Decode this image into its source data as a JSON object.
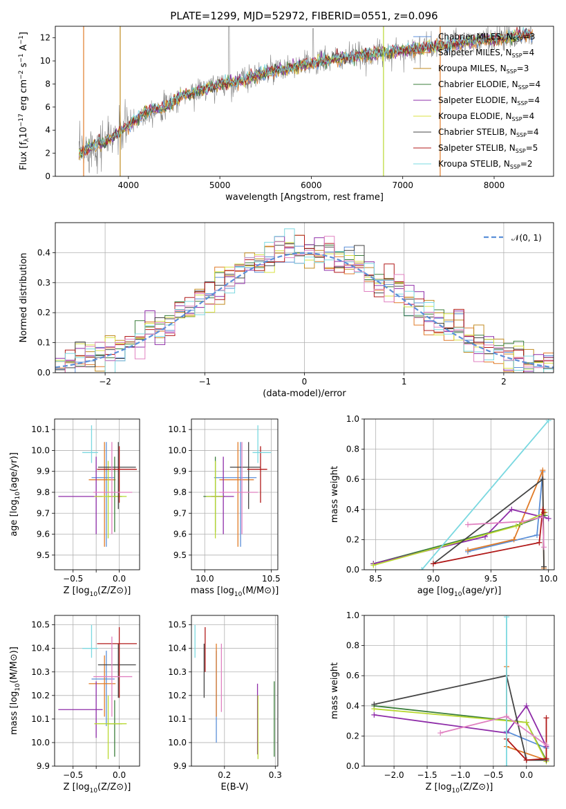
{
  "figure": {
    "title": "PLATE=1299, MJD=52972, FIBERID=0551, z=0.096"
  },
  "colors": {
    "data": "#808080",
    "Chabrier MILES": "#5b8fd8",
    "Salpeter MILES": "#e07b28",
    "Kroupa MILES": "#c08a20",
    "Chabrier ELODIE": "#3a7d3a",
    "Salpeter ELODIE": "#8e2ca8",
    "Kroupa ELODIE": "#d8e040",
    "Chabrier STELIB": "#444444",
    "Salpeter STELIB": "#b01818",
    "Kroupa STELIB": "#7ad8e0",
    "Pink": "#e080c0",
    "Lime": "#b8d830"
  },
  "chart_data": [
    {
      "id": "spectrum",
      "type": "line",
      "title": "PLATE=1299, MJD=52972, FIBERID=0551, z=0.096",
      "xlabel": "wavelength [Angstrom, rest frame]",
      "ylabel_parts": [
        "Flux [f",
        "λ",
        "10",
        "−17",
        " erg cm",
        "−2",
        " s",
        "−1",
        " A",
        "−1",
        "]"
      ],
      "xlim": [
        3200,
        8650
      ],
      "ylim": [
        0,
        13
      ],
      "xticks": [
        4000,
        5000,
        6000,
        7000,
        8000
      ],
      "yticks": [
        0,
        2,
        4,
        6,
        8,
        10,
        12
      ],
      "grid": false,
      "legend_position": "top-right",
      "legend": [
        {
          "label": "Chabrier MILES, N",
          "sub": "SSP",
          "suffix": "=3",
          "color": "#5b8fd8"
        },
        {
          "label": "Salpeter MILES, N",
          "sub": "SSP",
          "suffix": "=4",
          "color": "#e07b28"
        },
        {
          "label": "Kroupa MILES, N",
          "sub": "SSP",
          "suffix": "=3",
          "color": "#c08a20"
        },
        {
          "label": "Chabrier ELODIE, N",
          "sub": "SSP",
          "suffix": "=4",
          "color": "#3a7d3a"
        },
        {
          "label": "Salpeter ELODIE, N",
          "sub": "SSP",
          "suffix": "=4",
          "color": "#8e2ca8"
        },
        {
          "label": "Kroupa ELODIE, N",
          "sub": "SSP",
          "suffix": "=4",
          "color": "#d8e040"
        },
        {
          "label": "Chabrier STELIB, N",
          "sub": "SSP",
          "suffix": "=4",
          "color": "#444444"
        },
        {
          "label": "Salpeter STELIB, N",
          "sub": "SSP",
          "suffix": "=5",
          "color": "#b01818"
        },
        {
          "label": "Kroupa STELIB, N",
          "sub": "SSP",
          "suffix": "=2",
          "color": "#7ad8e0"
        }
      ],
      "model_trend": {
        "x": [
          3450,
          3600,
          3800,
          4000,
          4200,
          4400,
          4600,
          4800,
          5000,
          5200,
          5400,
          5600,
          5800,
          6000,
          6200,
          6400,
          6600,
          6800,
          7000,
          7200,
          7400,
          7600,
          7800,
          8000,
          8200,
          8400
        ],
        "y": [
          1.9,
          2.6,
          3.2,
          4.4,
          5.6,
          6.0,
          7.0,
          7.5,
          8.0,
          8.2,
          8.8,
          9.1,
          9.4,
          9.8,
          10.1,
          10.3,
          10.5,
          10.7,
          10.9,
          11.1,
          11.3,
          11.5,
          11.7,
          11.9,
          12.1,
          12.3
        ]
      },
      "vertical_spikes": [
        {
          "x": 3510,
          "color": "#e07b28"
        },
        {
          "x": 3910,
          "color": "#c08a20"
        },
        {
          "x": 6790,
          "color": "#b8d830"
        },
        {
          "x": 7410,
          "color": "#e07b28"
        }
      ]
    },
    {
      "id": "residuals",
      "type": "histogram",
      "xlabel": "(data-model)/error",
      "ylabel": "Normed distribution",
      "xlim": [
        -2.5,
        2.5
      ],
      "ylim": [
        0,
        0.5
      ],
      "xticks": [
        -2,
        -1,
        0,
        1,
        2
      ],
      "yticks": [
        0.0,
        0.1,
        0.2,
        0.3,
        0.4
      ],
      "grid": true,
      "legend_position": "top-right",
      "legend": [
        {
          "label": "𝒩(0, 1)",
          "style": "dashed",
          "color": "#5b8fd8"
        }
      ],
      "bins": 50,
      "curve": "normal pdf, mean 0, sigma 1"
    },
    {
      "id": "age_vs_Z",
      "type": "errorbar",
      "xlabel": "Z [log10(Z/Z⊙)]",
      "ylabel": "age  [log10(age/yr)]",
      "xlim": [
        -0.7,
        0.22
      ],
      "ylim": [
        9.43,
        10.15
      ],
      "xticks": [
        -0.5,
        -0.25,
        0.0
      ],
      "xticklabels": [
        "−0.5",
        "",
        "0.0"
      ],
      "yticks": [
        9.5,
        9.6,
        9.7,
        9.8,
        9.9,
        10.0,
        10.1
      ],
      "grid": true,
      "points": [
        {
          "x": -0.14,
          "y": 9.87,
          "xerr": [
            0.16,
            0.09
          ],
          "yerr": [
            0.33,
            0.17
          ],
          "color": "#5b8fd8"
        },
        {
          "x": -0.16,
          "y": 9.86,
          "xerr": [
            0.17,
            0.12
          ],
          "yerr": [
            0.32,
            0.18
          ],
          "color": "#e07b28"
        },
        {
          "x": -0.05,
          "y": 9.78,
          "xerr": [
            0.07,
            0.08
          ],
          "yerr": [
            0.17,
            0.19
          ],
          "color": "#3a7d3a"
        },
        {
          "x": -0.25,
          "y": 9.78,
          "xerr": [
            0.41,
            0.07
          ],
          "yerr": [
            0.18,
            0.19
          ],
          "color": "#8e2ca8"
        },
        {
          "x": -0.12,
          "y": 9.78,
          "xerr": [
            0.15,
            0.2
          ],
          "yerr": [
            0.2,
            0.17
          ],
          "color": "#b8d830"
        },
        {
          "x": -0.01,
          "y": 9.92,
          "xerr": [
            0.22,
            0.19
          ],
          "yerr": [
            0.2,
            0.12
          ],
          "color": "#444444"
        },
        {
          "x": 0.0,
          "y": 9.91,
          "xerr": [
            0.24,
            0.19
          ],
          "yerr": [
            0.16,
            0.11
          ],
          "color": "#b01818"
        },
        {
          "x": -0.3,
          "y": 9.99,
          "xerr": [
            0.1,
            0.07
          ],
          "yerr": [
            0.05,
            0.13
          ],
          "color": "#7ad8e0"
        },
        {
          "x": -0.08,
          "y": 9.8,
          "xerr": [
            0.2,
            0.22
          ],
          "yerr": [
            0.2,
            0.24
          ],
          "color": "#e080c0"
        }
      ]
    },
    {
      "id": "age_vs_mass",
      "type": "errorbar",
      "xlabel": "mass [log10(M/M⊙)]",
      "xlim": [
        9.9,
        10.55
      ],
      "ylim": [
        9.43,
        10.15
      ],
      "xticks": [
        10.0,
        10.5
      ],
      "yticks": [
        9.5,
        9.6,
        9.7,
        9.8,
        9.9,
        10.0,
        10.1
      ],
      "grid": true,
      "points": [
        {
          "x": 10.27,
          "y": 9.87,
          "xerr": [
            0.2,
            0.12
          ],
          "yerr": [
            0.33,
            0.17
          ],
          "color": "#5b8fd8"
        },
        {
          "x": 10.25,
          "y": 9.86,
          "xerr": [
            0.14,
            0.12
          ],
          "yerr": [
            0.32,
            0.18
          ],
          "color": "#e07b28"
        },
        {
          "x": 10.08,
          "y": 9.78,
          "xerr": [
            0.09,
            0.07
          ],
          "yerr": [
            0.17,
            0.19
          ],
          "color": "#3a7d3a"
        },
        {
          "x": 10.14,
          "y": 9.78,
          "xerr": [
            0.09,
            0.08
          ],
          "yerr": [
            0.18,
            0.19
          ],
          "color": "#8e2ca8"
        },
        {
          "x": 10.08,
          "y": 9.78,
          "xerr": [
            0.07,
            0.06
          ],
          "yerr": [
            0.2,
            0.17
          ],
          "color": "#b8d830"
        },
        {
          "x": 10.33,
          "y": 9.92,
          "xerr": [
            0.14,
            0.09
          ],
          "yerr": [
            0.2,
            0.12
          ],
          "color": "#444444"
        },
        {
          "x": 10.42,
          "y": 9.91,
          "xerr": [
            0.1,
            0.05
          ],
          "yerr": [
            0.16,
            0.11
          ],
          "color": "#b01818"
        },
        {
          "x": 10.4,
          "y": 9.99,
          "xerr": [
            0.04,
            0.1
          ],
          "yerr": [
            0.05,
            0.13
          ],
          "color": "#7ad8e0"
        },
        {
          "x": 10.28,
          "y": 9.8,
          "xerr": [
            0.17,
            0.12
          ],
          "yerr": [
            0.2,
            0.24
          ],
          "color": "#e080c0"
        }
      ]
    },
    {
      "id": "weight_vs_age",
      "type": "line",
      "xlabel": "age  [log10(age/yr)]",
      "ylabel": "mass weight",
      "xlim": [
        8.4,
        10.05
      ],
      "ylim": [
        0.0,
        1.0
      ],
      "xticks": [
        8.5,
        9.0,
        9.5,
        10.0
      ],
      "yticks": [
        0.0,
        0.2,
        0.4,
        0.6,
        0.8,
        1.0
      ],
      "grid": true,
      "series": [
        {
          "color": "#5b8fd8",
          "x": [
            9.3,
            9.9,
            9.95
          ],
          "y": [
            0.12,
            0.23,
            0.65
          ]
        },
        {
          "color": "#e07b28",
          "x": [
            9.3,
            9.7,
            9.95,
            9.96
          ],
          "y": [
            0.13,
            0.2,
            0.66,
            0.01
          ]
        },
        {
          "color": "#3a7d3a",
          "x": [
            8.48,
            9.75,
            9.97
          ],
          "y": [
            0.04,
            0.3,
            0.36
          ]
        },
        {
          "color": "#8e2ca8",
          "x": [
            8.48,
            9.45,
            9.68,
            9.95,
            10.0
          ],
          "y": [
            0.04,
            0.22,
            0.4,
            0.35,
            0.34
          ]
        },
        {
          "color": "#b8d830",
          "x": [
            8.48,
            9.72,
            9.97
          ],
          "y": [
            0.03,
            0.29,
            0.38
          ]
        },
        {
          "color": "#444444",
          "x": [
            9.0,
            9.95,
            9.96
          ],
          "y": [
            0.04,
            0.6,
            0.02
          ]
        },
        {
          "color": "#b01818",
          "x": [
            9.0,
            9.92,
            9.95,
            9.96
          ],
          "y": [
            0.04,
            0.18,
            0.4,
            0.38
          ]
        },
        {
          "color": "#7ad8e0",
          "x": [
            8.9,
            10.0
          ],
          "y": [
            0.0,
            0.99
          ]
        },
        {
          "color": "#e080c0",
          "x": [
            9.3,
            9.78,
            9.95,
            9.96
          ],
          "y": [
            0.3,
            0.32,
            0.35,
            0.15
          ]
        }
      ]
    },
    {
      "id": "mass_vs_Z",
      "type": "errorbar",
      "xlabel": "Z [log10(Z/Z⊙)]",
      "ylabel": "mass [log10(M/M⊙)]",
      "xlim": [
        -0.7,
        0.22
      ],
      "ylim": [
        9.9,
        10.54
      ],
      "xticks": [
        -0.5,
        -0.25,
        0.0
      ],
      "xticklabels": [
        "−0.5",
        "",
        "0.0"
      ],
      "yticks": [
        9.9,
        10.0,
        10.1,
        10.2,
        10.3,
        10.4,
        10.5
      ],
      "grid": true,
      "points": [
        {
          "x": -0.14,
          "y": 10.27,
          "xerr": [
            0.16,
            0.09
          ],
          "yerr": [
            0.2,
            0.12
          ],
          "color": "#5b8fd8"
        },
        {
          "x": -0.16,
          "y": 10.25,
          "xerr": [
            0.17,
            0.12
          ],
          "yerr": [
            0.14,
            0.12
          ],
          "color": "#e07b28"
        },
        {
          "x": -0.05,
          "y": 10.08,
          "xerr": [
            0.07,
            0.08
          ],
          "yerr": [
            0.14,
            0.1
          ],
          "color": "#3a7d3a"
        },
        {
          "x": -0.25,
          "y": 10.14,
          "xerr": [
            0.41,
            0.07
          ],
          "yerr": [
            0.12,
            0.12
          ],
          "color": "#8e2ca8"
        },
        {
          "x": -0.12,
          "y": 10.08,
          "xerr": [
            0.15,
            0.2
          ],
          "yerr": [
            0.15,
            0.12
          ],
          "color": "#b8d830"
        },
        {
          "x": -0.01,
          "y": 10.33,
          "xerr": [
            0.22,
            0.19
          ],
          "yerr": [
            0.14,
            0.09
          ],
          "color": "#444444"
        },
        {
          "x": 0.0,
          "y": 10.42,
          "xerr": [
            0.24,
            0.19
          ],
          "yerr": [
            0.23,
            0.07
          ],
          "color": "#b01818"
        },
        {
          "x": -0.3,
          "y": 10.4,
          "xerr": [
            0.1,
            0.07
          ],
          "yerr": [
            0.04,
            0.1
          ],
          "color": "#7ad8e0"
        },
        {
          "x": -0.08,
          "y": 10.28,
          "xerr": [
            0.2,
            0.22
          ],
          "yerr": [
            0.17,
            0.17
          ],
          "color": "#e080c0"
        }
      ]
    },
    {
      "id": "mass_vs_ebv",
      "type": "errorbar",
      "xlabel": "E(B-V)",
      "xlim": [
        0.135,
        0.305
      ],
      "ylim": [
        9.9,
        10.54
      ],
      "xticks": [
        0.2,
        0.3
      ],
      "yticks": [
        9.9,
        10.0,
        10.1,
        10.2,
        10.3,
        10.4,
        10.5
      ],
      "grid": true,
      "points": [
        {
          "x": 0.184,
          "y": 10.27,
          "xerr": [
            0,
            0
          ],
          "yerr": [
            0.27,
            0.12
          ],
          "color": "#5b8fd8"
        },
        {
          "x": 0.184,
          "y": 10.25,
          "xerr": [
            0,
            0
          ],
          "yerr": [
            0.14,
            0.17
          ],
          "color": "#e07b28"
        },
        {
          "x": 0.298,
          "y": 10.08,
          "xerr": [
            0,
            0
          ],
          "yerr": [
            0.14,
            0.18
          ],
          "color": "#3a7d3a"
        },
        {
          "x": 0.265,
          "y": 10.14,
          "xerr": [
            0,
            0
          ],
          "yerr": [
            0.19,
            0.11
          ],
          "color": "#8e2ca8"
        },
        {
          "x": 0.266,
          "y": 10.08,
          "xerr": [
            0,
            0
          ],
          "yerr": [
            0.15,
            0.12
          ],
          "color": "#b8d830"
        },
        {
          "x": 0.16,
          "y": 10.33,
          "xerr": [
            0,
            0
          ],
          "yerr": [
            0.14,
            0.09
          ],
          "color": "#444444"
        },
        {
          "x": 0.162,
          "y": 10.42,
          "xerr": [
            0,
            0
          ],
          "yerr": [
            0.12,
            0.07
          ],
          "color": "#b01818"
        },
        {
          "x": 0.142,
          "y": 10.4,
          "xerr": [
            0,
            0
          ],
          "yerr": [
            0.04,
            0.1
          ],
          "color": "#7ad8e0"
        },
        {
          "x": 0.194,
          "y": 10.28,
          "xerr": [
            0,
            0
          ],
          "yerr": [
            0.15,
            0.14
          ],
          "color": "#e080c0"
        }
      ]
    },
    {
      "id": "weight_vs_Z",
      "type": "line",
      "xlabel": "Z [log10(Z/Z⊙)]",
      "ylabel": "mass weight",
      "xlim": [
        -2.45,
        0.42
      ],
      "ylim": [
        0.0,
        1.0
      ],
      "xticks": [
        -2.0,
        -1.5,
        -1.0,
        -0.5,
        0.0
      ],
      "yticks": [
        0.0,
        0.2,
        0.4,
        0.6,
        0.8,
        1.0
      ],
      "grid": true,
      "series": [
        {
          "color": "#5b8fd8",
          "x": [
            -0.3,
            0.3
          ],
          "y": [
            0.23,
            0.12
          ]
        },
        {
          "color": "#e07b28",
          "x": [
            -0.3,
            -0.3,
            0.3
          ],
          "y": [
            0.66,
            0.13,
            0.04
          ]
        },
        {
          "color": "#3a7d3a",
          "x": [
            -2.3,
            0.0,
            0.3
          ],
          "y": [
            0.4,
            0.29,
            0.04
          ]
        },
        {
          "color": "#8e2ca8",
          "x": [
            -2.3,
            -0.3,
            0.0,
            0.3
          ],
          "y": [
            0.34,
            0.22,
            0.4,
            0.13
          ]
        },
        {
          "color": "#b8d830",
          "x": [
            -2.3,
            0.0,
            0.3
          ],
          "y": [
            0.38,
            0.29,
            0.03
          ]
        },
        {
          "color": "#444444",
          "x": [
            -2.3,
            -0.3,
            0.0,
            0.3
          ],
          "y": [
            0.41,
            0.6,
            0.04,
            0.04
          ]
        },
        {
          "color": "#b01818",
          "x": [
            -0.3,
            0.0,
            0.3,
            0.3
          ],
          "y": [
            0.18,
            0.04,
            0.05,
            0.32
          ]
        },
        {
          "color": "#7ad8e0",
          "x": [
            -0.3,
            -0.3
          ],
          "y": [
            0.0,
            0.99
          ]
        },
        {
          "color": "#e080c0",
          "x": [
            -1.3,
            -0.3,
            0.3
          ],
          "y": [
            0.22,
            0.33,
            0.14
          ]
        }
      ]
    }
  ]
}
